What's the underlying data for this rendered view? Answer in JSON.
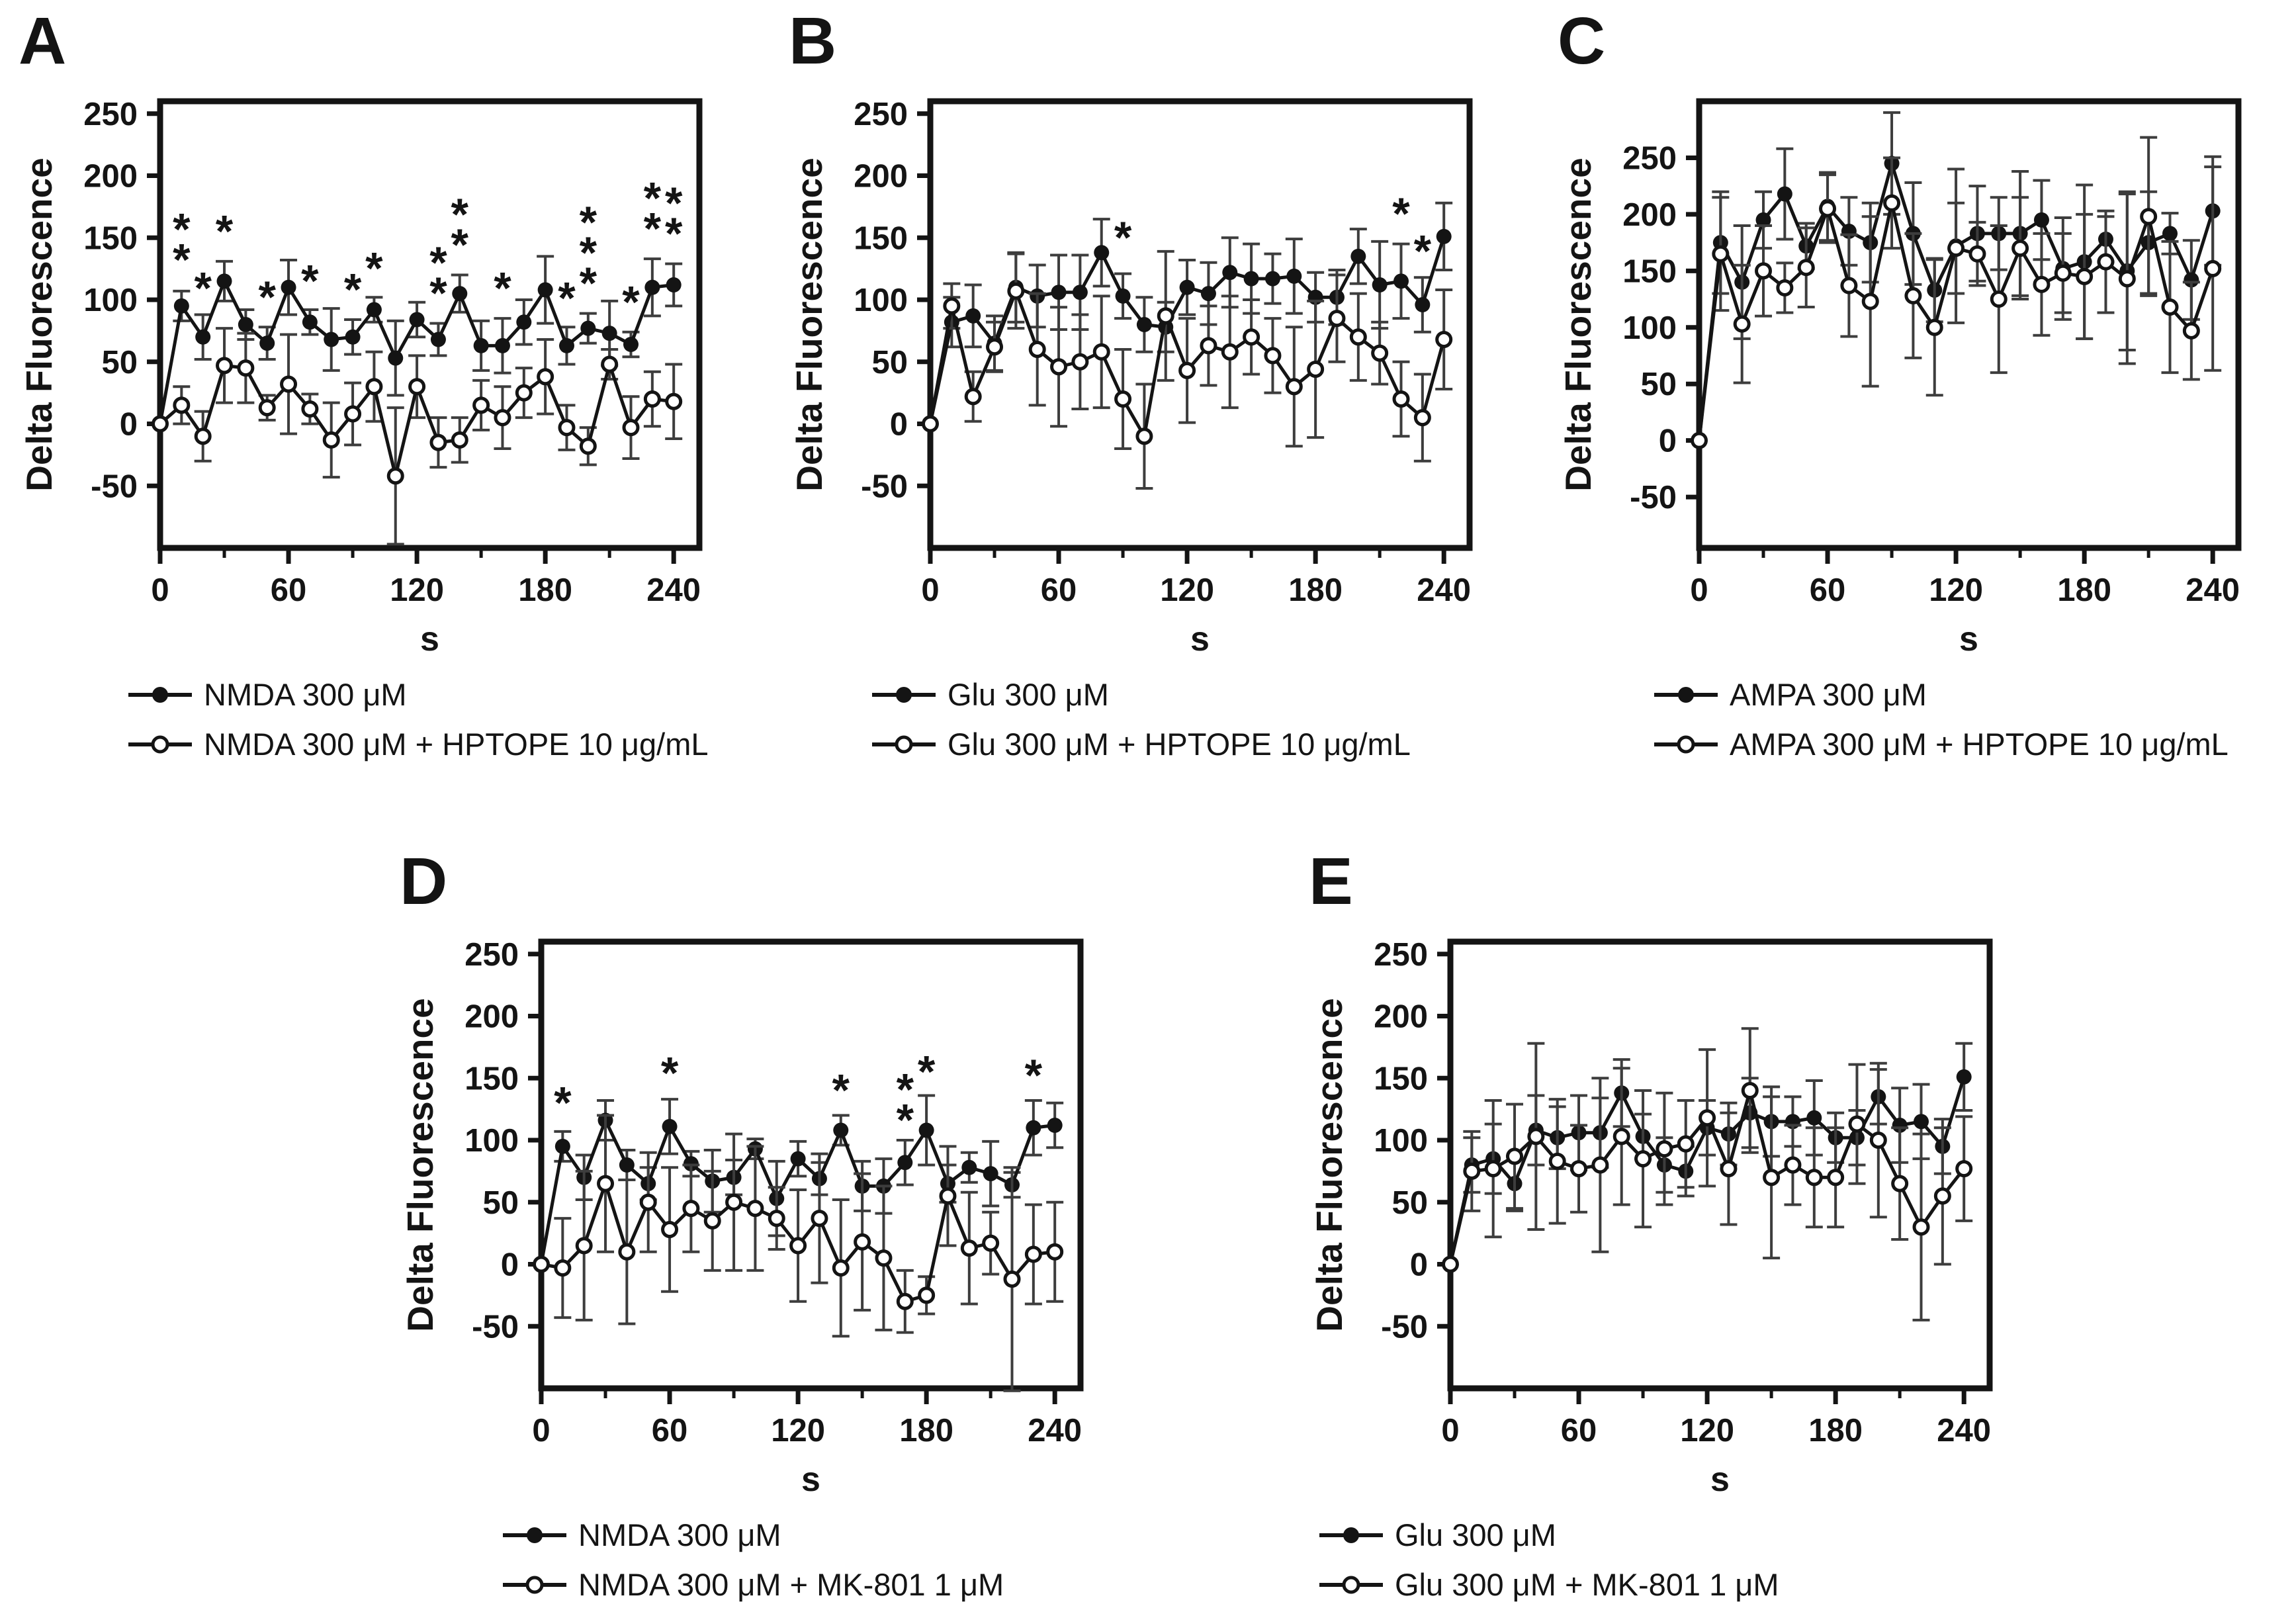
{
  "figure": {
    "background": "#ffffff",
    "ink": "#141414",
    "error_bar_color": "#3d3d3d",
    "ylabel": "Delta Fluorescence",
    "xlabel": "s"
  },
  "chart_data": [
    {
      "panel_label": "A",
      "type": "line",
      "xlabel": "s",
      "ylabel": "Delta Fluorescence",
      "xlim": [
        0,
        252
      ],
      "ylim": [
        -100,
        260
      ],
      "xticks": [
        0,
        60,
        120,
        180,
        240
      ],
      "xminor": [
        30,
        90,
        150,
        210
      ],
      "yticks": [
        250,
        200,
        150,
        100,
        50,
        0,
        -50
      ],
      "x": [
        0,
        10,
        20,
        30,
        40,
        50,
        60,
        70,
        80,
        90,
        100,
        110,
        120,
        130,
        140,
        150,
        160,
        170,
        180,
        190,
        200,
        210,
        220,
        230,
        240
      ],
      "series": [
        {
          "name": "NMDA 300 μM",
          "marker": "filled-circle",
          "values": [
            0,
            95,
            70,
            115,
            80,
            65,
            110,
            82,
            68,
            70,
            92,
            53,
            84,
            68,
            105,
            63,
            63,
            82,
            108,
            63,
            77,
            73,
            64,
            110,
            112
          ],
          "errors": [
            4,
            12,
            18,
            16,
            12,
            13,
            22,
            10,
            25,
            14,
            10,
            30,
            14,
            13,
            15,
            20,
            22,
            18,
            27,
            15,
            12,
            26,
            10,
            23,
            17
          ]
        },
        {
          "name": "NMDA 300 μM + HPTOPE 10 μg/mL",
          "marker": "open-circle",
          "values": [
            0,
            15,
            -10,
            47,
            45,
            13,
            32,
            12,
            -13,
            8,
            30,
            -42,
            30,
            -15,
            -13,
            15,
            5,
            25,
            38,
            -3,
            -18,
            48,
            -3,
            20,
            18
          ],
          "errors": [
            4,
            15,
            20,
            30,
            28,
            10,
            40,
            12,
            30,
            25,
            28,
            55,
            25,
            20,
            18,
            20,
            25,
            20,
            30,
            18,
            15,
            12,
            25,
            22,
            30
          ]
        }
      ],
      "annotations": [
        {
          "x": 10,
          "y": 120,
          "stars": 2
        },
        {
          "x": 20,
          "y": 97,
          "stars": 1
        },
        {
          "x": 30,
          "y": 143,
          "stars": 1
        },
        {
          "x": 50,
          "y": 90,
          "stars": 1
        },
        {
          "x": 70,
          "y": 103,
          "stars": 1
        },
        {
          "x": 90,
          "y": 96,
          "stars": 1
        },
        {
          "x": 100,
          "y": 113,
          "stars": 1
        },
        {
          "x": 130,
          "y": 93,
          "stars": 2
        },
        {
          "x": 140,
          "y": 132,
          "stars": 2
        },
        {
          "x": 160,
          "y": 97,
          "stars": 1
        },
        {
          "x": 190,
          "y": 89,
          "stars": 1
        },
        {
          "x": 200,
          "y": 101,
          "stars": 3
        },
        {
          "x": 220,
          "y": 86,
          "stars": 1
        },
        {
          "x": 230,
          "y": 145,
          "stars": 2
        },
        {
          "x": 240,
          "y": 141,
          "stars": 2
        }
      ]
    },
    {
      "panel_label": "B",
      "type": "line",
      "xlabel": "s",
      "ylabel": "Delta Fluorescence",
      "xlim": [
        0,
        252
      ],
      "ylim": [
        -100,
        260
      ],
      "xticks": [
        0,
        60,
        120,
        180,
        240
      ],
      "xminor": [
        30,
        90,
        150,
        210
      ],
      "yticks": [
        250,
        200,
        150,
        100,
        50,
        0,
        -50
      ],
      "x": [
        0,
        10,
        20,
        30,
        40,
        50,
        60,
        70,
        80,
        90,
        100,
        110,
        120,
        130,
        140,
        150,
        160,
        170,
        180,
        190,
        200,
        210,
        220,
        230,
        240
      ],
      "series": [
        {
          "name": "Glu 300 μM",
          "marker": "filled-circle",
          "values": [
            0,
            82,
            87,
            65,
            110,
            103,
            106,
            106,
            138,
            103,
            80,
            78,
            110,
            105,
            122,
            117,
            117,
            119,
            102,
            102,
            135,
            112,
            115,
            96,
            151
          ],
          "errors": [
            4,
            20,
            25,
            22,
            28,
            25,
            30,
            30,
            27,
            18,
            22,
            20,
            22,
            25,
            28,
            28,
            20,
            30,
            20,
            22,
            22,
            35,
            30,
            22,
            27
          ]
        },
        {
          "name": "Glu 300 μM + HPTOPE 10 μg/mL",
          "marker": "open-circle",
          "values": [
            0,
            95,
            22,
            62,
            107,
            60,
            46,
            50,
            58,
            20,
            -10,
            87,
            43,
            63,
            58,
            70,
            55,
            30,
            44,
            85,
            70,
            57,
            20,
            5,
            68
          ],
          "errors": [
            4,
            18,
            20,
            20,
            30,
            45,
            48,
            38,
            45,
            40,
            42,
            52,
            42,
            32,
            45,
            30,
            30,
            48,
            55,
            35,
            35,
            25,
            30,
            35,
            40
          ]
        }
      ],
      "annotations": [
        {
          "x": 90,
          "y": 138,
          "stars": 1
        },
        {
          "x": 220,
          "y": 157,
          "stars": 1
        },
        {
          "x": 230,
          "y": 127,
          "stars": 1
        }
      ]
    },
    {
      "panel_label": "C",
      "type": "line",
      "xlabel": "s",
      "ylabel": "Delta Fluorescence",
      "xlim": [
        0,
        252
      ],
      "ylim": [
        -95,
        300
      ],
      "xticks": [
        0,
        60,
        120,
        180,
        240
      ],
      "xminor": [
        30,
        90,
        150,
        210
      ],
      "yticks": [
        250,
        200,
        150,
        100,
        50,
        0,
        -50
      ],
      "x": [
        0,
        10,
        20,
        30,
        40,
        50,
        60,
        70,
        80,
        90,
        100,
        110,
        120,
        130,
        140,
        150,
        160,
        170,
        180,
        190,
        200,
        210,
        220,
        230,
        240
      ],
      "series": [
        {
          "name": "AMPA 300 μM",
          "marker": "filled-circle",
          "values": [
            0,
            175,
            140,
            195,
            218,
            172,
            207,
            185,
            175,
            245,
            183,
            133,
            172,
            183,
            183,
            183,
            195,
            152,
            158,
            178,
            150,
            175,
            183,
            142,
            203
          ],
          "errors": [
            4,
            45,
            50,
            25,
            40,
            20,
            30,
            30,
            35,
            45,
            45,
            28,
            68,
            42,
            32,
            55,
            35,
            45,
            68,
            20,
            70,
            45,
            18,
            35,
            48
          ]
        },
        {
          "name": "AMPA 300 μM + HPTOPE 10 μg/mL",
          "marker": "open-circle",
          "values": [
            0,
            165,
            103,
            150,
            135,
            153,
            205,
            137,
            123,
            210,
            128,
            100,
            170,
            165,
            125,
            170,
            138,
            148,
            145,
            158,
            143,
            198,
            118,
            97,
            152
          ],
          "errors": [
            4,
            50,
            52,
            40,
            22,
            35,
            30,
            45,
            75,
            40,
            55,
            60,
            40,
            28,
            65,
            45,
            45,
            35,
            55,
            45,
            75,
            70,
            58,
            43,
            90
          ]
        }
      ],
      "annotations": []
    },
    {
      "panel_label": "D",
      "type": "line",
      "xlabel": "s",
      "ylabel": "Delta Fluorescence",
      "xlim": [
        0,
        252
      ],
      "ylim": [
        -100,
        260
      ],
      "xticks": [
        0,
        60,
        120,
        180,
        240
      ],
      "xminor": [
        30,
        90,
        150,
        210
      ],
      "yticks": [
        250,
        200,
        150,
        100,
        50,
        0,
        -50
      ],
      "x": [
        0,
        10,
        20,
        30,
        40,
        50,
        60,
        70,
        80,
        90,
        100,
        110,
        120,
        130,
        140,
        150,
        160,
        170,
        180,
        190,
        200,
        210,
        220,
        230,
        240
      ],
      "series": [
        {
          "name": "NMDA 300 μM",
          "marker": "filled-circle",
          "values": [
            0,
            95,
            70,
            116,
            80,
            65,
            111,
            81,
            67,
            70,
            93,
            53,
            85,
            69,
            108,
            63,
            63,
            82,
            108,
            65,
            78,
            73,
            64,
            110,
            112
          ],
          "errors": [
            4,
            12,
            18,
            16,
            12,
            13,
            22,
            10,
            25,
            14,
            8,
            30,
            14,
            13,
            12,
            20,
            22,
            18,
            28,
            15,
            12,
            26,
            10,
            22,
            18
          ]
        },
        {
          "name": "NMDA 300 μM + MK-801 1 μM",
          "marker": "open-circle",
          "values": [
            0,
            -3,
            15,
            65,
            10,
            50,
            28,
            45,
            35,
            50,
            45,
            37,
            15,
            37,
            -3,
            18,
            5,
            -30,
            -25,
            55,
            13,
            17,
            -12,
            8,
            10
          ],
          "errors": [
            4,
            40,
            60,
            55,
            58,
            40,
            50,
            35,
            40,
            55,
            50,
            25,
            45,
            52,
            55,
            55,
            58,
            25,
            15,
            40,
            45,
            25,
            90,
            40,
            40
          ]
        }
      ],
      "annotations": [
        {
          "x": 10,
          "y": 118,
          "stars": 1
        },
        {
          "x": 60,
          "y": 142,
          "stars": 1
        },
        {
          "x": 140,
          "y": 128,
          "stars": 1
        },
        {
          "x": 170,
          "y": 104,
          "stars": 2
        },
        {
          "x": 180,
          "y": 143,
          "stars": 1
        },
        {
          "x": 230,
          "y": 140,
          "stars": 1
        }
      ]
    },
    {
      "panel_label": "E",
      "type": "line",
      "xlabel": "s",
      "ylabel": "Delta Fluorescence",
      "xlim": [
        0,
        252
      ],
      "ylim": [
        -100,
        260
      ],
      "xticks": [
        0,
        60,
        120,
        180,
        240
      ],
      "xminor": [
        30,
        90,
        150,
        210
      ],
      "yticks": [
        250,
        200,
        150,
        100,
        50,
        0,
        -50
      ],
      "x": [
        0,
        10,
        20,
        30,
        40,
        50,
        60,
        70,
        80,
        90,
        100,
        110,
        120,
        130,
        140,
        150,
        160,
        170,
        180,
        190,
        200,
        210,
        220,
        230,
        240
      ],
      "series": [
        {
          "name": "Glu 300 μM",
          "marker": "filled-circle",
          "values": [
            0,
            80,
            85,
            65,
            108,
            102,
            106,
            106,
            138,
            103,
            80,
            75,
            110,
            105,
            122,
            115,
            115,
            118,
            102,
            102,
            135,
            112,
            115,
            95,
            151
          ],
          "errors": [
            4,
            22,
            28,
            22,
            28,
            25,
            30,
            28,
            27,
            18,
            22,
            20,
            22,
            25,
            28,
            28,
            20,
            30,
            20,
            22,
            22,
            30,
            30,
            22,
            27
          ]
        },
        {
          "name": "Glu 300 μM + MK-801 1 μM",
          "marker": "open-circle",
          "values": [
            0,
            75,
            77,
            87,
            103,
            83,
            77,
            80,
            103,
            85,
            93,
            97,
            118,
            77,
            140,
            70,
            80,
            70,
            70,
            113,
            100,
            65,
            30,
            55,
            77
          ],
          "errors": [
            4,
            32,
            55,
            42,
            75,
            50,
            35,
            70,
            55,
            55,
            45,
            35,
            55,
            45,
            50,
            65,
            32,
            40,
            40,
            48,
            62,
            45,
            75,
            55,
            42
          ]
        }
      ],
      "annotations": []
    }
  ]
}
